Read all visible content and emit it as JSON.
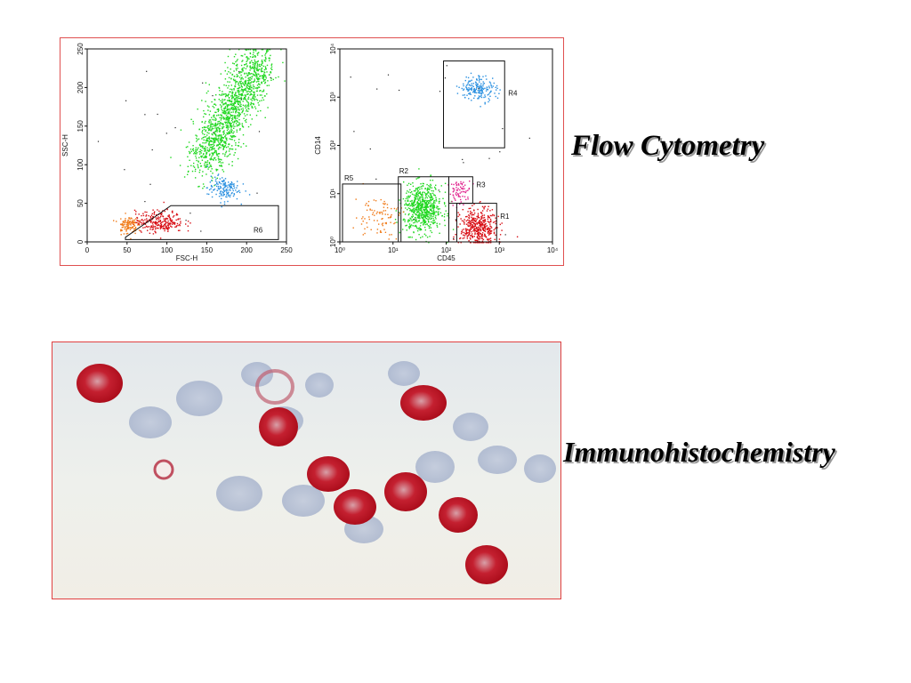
{
  "slide": {
    "title_flow": "Flow Cytometry",
    "title_ihc": "Immunohistochemistry"
  },
  "colors": {
    "frame": "#e05050",
    "green": "#22d822",
    "blue": "#2a90e0",
    "red": "#d80e14",
    "orange": "#f07a18",
    "magenta": "#e0208c",
    "stain_red": "#c4182a",
    "stain_blue": "#9aaac8"
  },
  "chart_data": [
    {
      "type": "scatter",
      "xlabel": "FSC-H",
      "ylabel": "SSC-H",
      "xlim": [
        0,
        250
      ],
      "ylim": [
        0,
        250
      ],
      "xticks": [
        "0",
        "50",
        "100",
        "150",
        "200",
        "250"
      ],
      "yticks": [
        "0",
        "50",
        "100",
        "150",
        "200",
        "250"
      ],
      "grid": false,
      "gates": [
        {
          "name": "R6",
          "polygon": [
            [
              48,
              6
            ],
            [
              105,
              47
            ],
            [
              240,
              47
            ],
            [
              240,
              3
            ],
            [
              48,
              3
            ]
          ]
        }
      ],
      "series": [
        {
          "color": "green",
          "cluster": {
            "from": [
              145,
              120
            ],
            "to": [
              215,
              235
            ],
            "count": 1400
          }
        },
        {
          "color": "blue",
          "cluster": {
            "center": [
              170,
              70
            ],
            "spread": [
              10,
              8
            ],
            "count": 150
          }
        },
        {
          "color": "red",
          "cluster": {
            "center": [
              90,
              27
            ],
            "spread": [
              15,
              7
            ],
            "count": 260
          }
        },
        {
          "color": "orange",
          "cluster": {
            "center": [
              50,
              23
            ],
            "spread": [
              6,
              6
            ],
            "count": 110
          }
        }
      ]
    },
    {
      "type": "scatter",
      "xlabel": "CD45",
      "ylabel": "CD14",
      "xlim": [
        0,
        4
      ],
      "ylim": [
        0,
        4
      ],
      "log_scale": true,
      "xticks": [
        "10⁰",
        "10¹",
        "10²",
        "10³",
        "10⁴"
      ],
      "yticks": [
        "10⁰",
        "10¹",
        "10²",
        "10³",
        "10⁴"
      ],
      "grid": false,
      "gates": [
        {
          "name": "R1",
          "rect": [
            2.2,
            0.0,
            2.95,
            0.8
          ]
        },
        {
          "name": "R2",
          "rect": [
            1.1,
            0.0,
            2.05,
            1.35
          ]
        },
        {
          "name": "R3",
          "rect": [
            2.05,
            0.8,
            2.5,
            1.35
          ]
        },
        {
          "name": "R4",
          "rect": [
            1.95,
            1.95,
            3.1,
            3.75
          ]
        },
        {
          "name": "R5",
          "rect": [
            0.05,
            0.0,
            1.15,
            1.2
          ]
        }
      ],
      "series": [
        {
          "color": "green",
          "cluster": {
            "center": [
              1.55,
              0.7
            ],
            "spread": [
              0.18,
              0.25
            ],
            "count": 650
          }
        },
        {
          "color": "red",
          "cluster": {
            "center": [
              2.6,
              0.3
            ],
            "spread": [
              0.17,
              0.2
            ],
            "count": 420
          }
        },
        {
          "color": "magenta",
          "cluster": {
            "center": [
              2.25,
              1.05
            ],
            "spread": [
              0.1,
              0.12
            ],
            "count": 70
          }
        },
        {
          "color": "blue",
          "cluster": {
            "center": [
              2.6,
              3.2
            ],
            "spread": [
              0.17,
              0.13
            ],
            "count": 180
          }
        },
        {
          "color": "orange",
          "cluster": {
            "center": [
              0.7,
              0.55
            ],
            "spread": [
              0.22,
              0.22
            ],
            "count": 90
          }
        }
      ]
    }
  ]
}
